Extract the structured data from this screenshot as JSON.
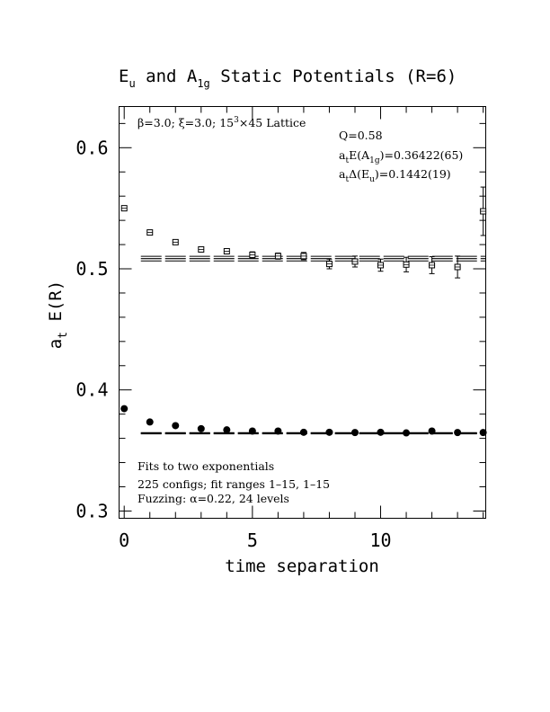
{
  "chart_data": {
    "type": "scatter",
    "title": "E_u and A_1g Static Potentials (R=6)",
    "title_parts": {
      "a": "E",
      "a_sub": "u",
      "b": " and A",
      "b_sub": "1g",
      "c": " Static Potentials (R=6)"
    },
    "xlabel": "time separation",
    "ylabel": "a_t E(R)",
    "ylabel_parts": {
      "main": "a",
      "sub": "t",
      "rest": " E(R)"
    },
    "xlim": [
      -0.2,
      14.1
    ],
    "ylim": [
      0.294,
      0.634
    ],
    "xticks": [
      0,
      5,
      10
    ],
    "xtick_labels": [
      "0",
      "5",
      "10"
    ],
    "yticks": [
      0.3,
      0.4,
      0.5,
      0.6
    ],
    "ytick_labels": [
      "0.3",
      "0.4",
      "0.5",
      "0.6"
    ],
    "grid": false,
    "series": [
      {
        "marker": "filled-circle",
        "x": [
          0,
          1,
          2,
          3,
          4,
          5,
          6,
          7,
          8,
          9,
          10,
          11,
          12,
          13,
          14
        ],
        "y": [
          0.3845,
          0.3735,
          0.3705,
          0.368,
          0.367,
          0.366,
          0.366,
          0.365,
          0.365,
          0.3648,
          0.365,
          0.3645,
          0.366,
          0.3648,
          0.3648
        ],
        "err": [
          0.0008,
          0.0008,
          0.0008,
          0.0008,
          0.0008,
          0.0008,
          0.0008,
          0.0008,
          0.0008,
          0.0008,
          0.0008,
          0.001,
          0.0012,
          0.001,
          0.0012
        ]
      },
      {
        "marker": "open-square",
        "x": [
          0,
          1,
          2,
          3,
          4,
          5,
          6,
          7,
          8,
          9,
          10,
          11,
          12,
          13,
          14
        ],
        "y": [
          0.55,
          0.53,
          0.522,
          0.516,
          0.5145,
          0.5115,
          0.5105,
          0.5105,
          0.504,
          0.506,
          0.503,
          0.5035,
          0.503,
          0.5015,
          0.5475
        ],
        "err": [
          0.001,
          0.0012,
          0.0015,
          0.0018,
          0.0022,
          0.0025,
          0.0025,
          0.003,
          0.004,
          0.0045,
          0.005,
          0.006,
          0.007,
          0.009,
          0.02
        ]
      }
    ],
    "fit_bands": [
      {
        "x_start": 1,
        "x_end": 15,
        "center": 0.3642,
        "halfwidth": 0.0004
      },
      {
        "x_start": 1,
        "x_end": 15,
        "center": 0.5084,
        "halfwidth": 0.0019
      }
    ],
    "annotations": {
      "lattice": {
        "beta": "β=3.0; ",
        "xi": "ξ=3.0; ",
        "size": "15",
        "size_sup": "3",
        "rest": "×45 Lattice"
      },
      "q": "Q=0.58",
      "e_a1g": {
        "a": "a",
        "a_sub": "t",
        "b": "E(A",
        "b_sub": "1g",
        "c": ")=0.36422(65)"
      },
      "delta_eu": {
        "a": "a",
        "a_sub": "t",
        "b": "Δ(E",
        "b_sub": "u",
        "c": ")=0.1442(19)"
      },
      "fits_line1": "Fits to two exponentials",
      "fits_line2": "225 configs; fit ranges 1–15, 1–15",
      "fits_line3": "Fuzzing: α=0.22, 24 levels"
    }
  }
}
